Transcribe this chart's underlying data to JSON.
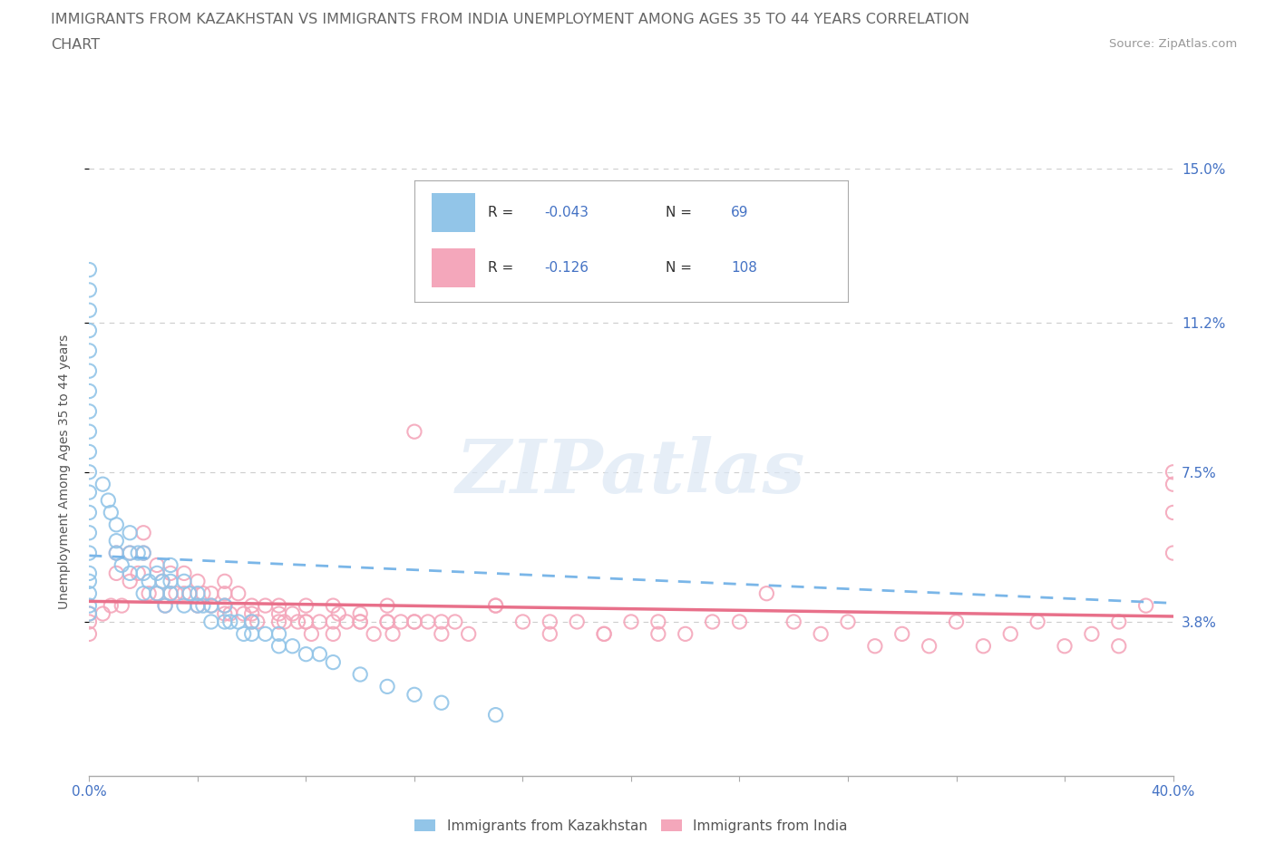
{
  "title_line1": "IMMIGRANTS FROM KAZAKHSTAN VS IMMIGRANTS FROM INDIA UNEMPLOYMENT AMONG AGES 35 TO 44 YEARS CORRELATION",
  "title_line2": "CHART",
  "source_text": "Source: ZipAtlas.com",
  "ylabel": "Unemployment Among Ages 35 to 44 years",
  "xlim": [
    0.0,
    0.4
  ],
  "ylim": [
    0.0,
    0.15
  ],
  "yticks": [
    0.038,
    0.075,
    0.112,
    0.15
  ],
  "ytick_labels": [
    "3.8%",
    "7.5%",
    "11.2%",
    "15.0%"
  ],
  "xtick_labels": [
    "0.0%",
    "40.0%"
  ],
  "xtick_vals": [
    0.0,
    0.4
  ],
  "kazakhstan_color": "#92c5e8",
  "india_color": "#f4a7bb",
  "trend_kaz_color": "#6baed6",
  "trend_ind_color": "#e87aa0",
  "kazakhstan_R": -0.043,
  "kazakhstan_N": 69,
  "india_R": -0.126,
  "india_N": 108,
  "legend_label_kaz": "Immigrants from Kazakhstan",
  "legend_label_ind": "Immigrants from India",
  "watermark": "ZIPatlas",
  "background_color": "#ffffff",
  "grid_color": "#cccccc",
  "axis_color": "#4472c4",
  "title_color": "#666666",
  "legend_R_color": "#4472c4",
  "legend_N_color": "#4472c4",
  "kazakhstan_scatter_x": [
    0.0,
    0.0,
    0.0,
    0.0,
    0.0,
    0.0,
    0.0,
    0.0,
    0.0,
    0.0,
    0.0,
    0.0,
    0.0,
    0.0,
    0.0,
    0.0,
    0.0,
    0.0,
    0.0,
    0.0,
    0.005,
    0.007,
    0.008,
    0.01,
    0.01,
    0.01,
    0.012,
    0.015,
    0.015,
    0.015,
    0.018,
    0.02,
    0.02,
    0.02,
    0.022,
    0.025,
    0.025,
    0.027,
    0.028,
    0.03,
    0.03,
    0.03,
    0.035,
    0.035,
    0.037,
    0.04,
    0.04,
    0.042,
    0.045,
    0.045,
    0.05,
    0.05,
    0.052,
    0.055,
    0.057,
    0.06,
    0.06,
    0.065,
    0.07,
    0.07,
    0.075,
    0.08,
    0.085,
    0.09,
    0.1,
    0.11,
    0.12,
    0.13,
    0.15
  ],
  "kazakhstan_scatter_y": [
    0.125,
    0.12,
    0.115,
    0.11,
    0.105,
    0.1,
    0.095,
    0.09,
    0.085,
    0.08,
    0.075,
    0.07,
    0.065,
    0.06,
    0.055,
    0.05,
    0.048,
    0.045,
    0.042,
    0.04,
    0.072,
    0.068,
    0.065,
    0.062,
    0.058,
    0.055,
    0.052,
    0.06,
    0.055,
    0.05,
    0.055,
    0.055,
    0.05,
    0.045,
    0.048,
    0.05,
    0.045,
    0.048,
    0.042,
    0.052,
    0.048,
    0.045,
    0.048,
    0.042,
    0.045,
    0.045,
    0.042,
    0.042,
    0.042,
    0.038,
    0.042,
    0.038,
    0.038,
    0.038,
    0.035,
    0.038,
    0.035,
    0.035,
    0.035,
    0.032,
    0.032,
    0.03,
    0.03,
    0.028,
    0.025,
    0.022,
    0.02,
    0.018,
    0.015
  ],
  "india_scatter_x": [
    0.0,
    0.0,
    0.0,
    0.005,
    0.008,
    0.01,
    0.01,
    0.012,
    0.015,
    0.015,
    0.018,
    0.02,
    0.02,
    0.022,
    0.025,
    0.025,
    0.027,
    0.028,
    0.03,
    0.03,
    0.032,
    0.035,
    0.035,
    0.037,
    0.04,
    0.04,
    0.042,
    0.045,
    0.045,
    0.05,
    0.05,
    0.05,
    0.052,
    0.055,
    0.057,
    0.06,
    0.06,
    0.062,
    0.065,
    0.07,
    0.07,
    0.072,
    0.075,
    0.077,
    0.08,
    0.08,
    0.082,
    0.085,
    0.09,
    0.09,
    0.092,
    0.095,
    0.1,
    0.1,
    0.105,
    0.11,
    0.112,
    0.115,
    0.12,
    0.12,
    0.125,
    0.13,
    0.135,
    0.14,
    0.15,
    0.16,
    0.17,
    0.18,
    0.19,
    0.2,
    0.21,
    0.22,
    0.23,
    0.24,
    0.25,
    0.26,
    0.27,
    0.28,
    0.29,
    0.3,
    0.31,
    0.32,
    0.33,
    0.34,
    0.35,
    0.36,
    0.37,
    0.38,
    0.38,
    0.39,
    0.4,
    0.4,
    0.4,
    0.4,
    0.15,
    0.17,
    0.19,
    0.21,
    0.09,
    0.11,
    0.07,
    0.05,
    0.06,
    0.08,
    0.13,
    0.12,
    0.11,
    0.1
  ],
  "india_scatter_y": [
    0.04,
    0.038,
    0.035,
    0.04,
    0.042,
    0.055,
    0.05,
    0.042,
    0.055,
    0.048,
    0.05,
    0.06,
    0.055,
    0.045,
    0.052,
    0.045,
    0.048,
    0.042,
    0.05,
    0.045,
    0.045,
    0.05,
    0.045,
    0.045,
    0.048,
    0.042,
    0.045,
    0.045,
    0.042,
    0.048,
    0.045,
    0.042,
    0.04,
    0.045,
    0.04,
    0.042,
    0.04,
    0.038,
    0.042,
    0.042,
    0.038,
    0.038,
    0.04,
    0.038,
    0.042,
    0.038,
    0.035,
    0.038,
    0.038,
    0.035,
    0.04,
    0.038,
    0.04,
    0.038,
    0.035,
    0.038,
    0.035,
    0.038,
    0.038,
    0.085,
    0.038,
    0.035,
    0.038,
    0.035,
    0.042,
    0.038,
    0.035,
    0.038,
    0.035,
    0.038,
    0.038,
    0.035,
    0.038,
    0.038,
    0.045,
    0.038,
    0.035,
    0.038,
    0.032,
    0.035,
    0.032,
    0.038,
    0.032,
    0.035,
    0.038,
    0.032,
    0.035,
    0.038,
    0.032,
    0.042,
    0.065,
    0.055,
    0.075,
    0.072,
    0.042,
    0.038,
    0.035,
    0.035,
    0.042,
    0.042,
    0.04,
    0.04,
    0.038,
    0.038,
    0.038,
    0.038,
    0.038,
    0.038
  ]
}
